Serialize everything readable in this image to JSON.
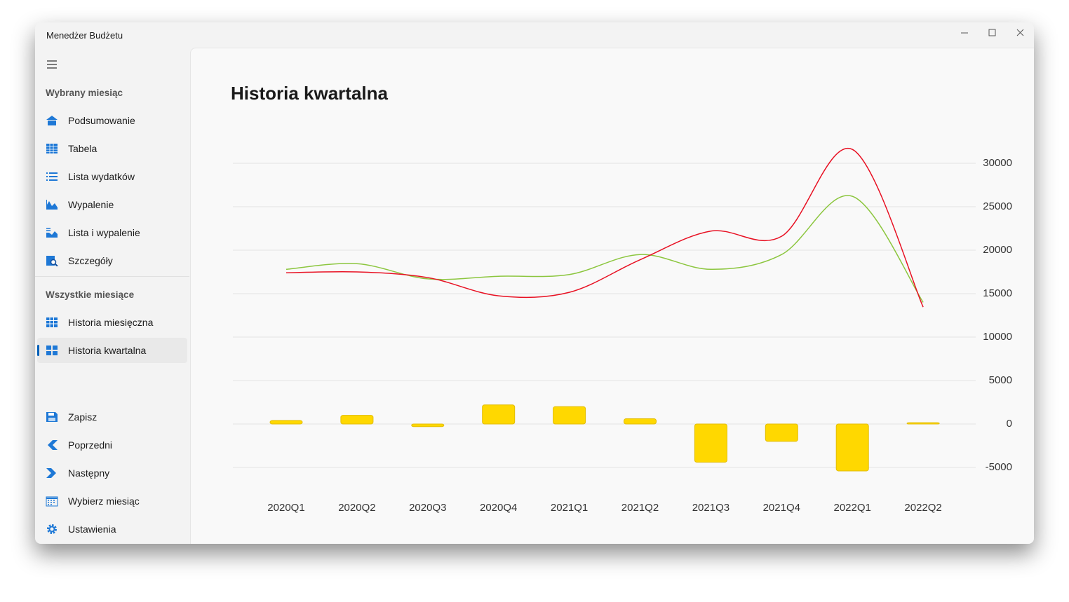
{
  "window": {
    "title": "Menedżer Budżetu"
  },
  "sidebar": {
    "sections": [
      {
        "header": "Wybrany miesiąc",
        "items": [
          "Podsumowanie",
          "Tabela",
          "Lista wydatków",
          "Wypalenie",
          "Lista i wypalenie",
          "Szczegóły"
        ]
      },
      {
        "header": "Wszystkie miesiące",
        "items": [
          "Historia miesięczna",
          "Historia kwartalna"
        ]
      }
    ],
    "footer_items": [
      "Zapisz",
      "Poprzedni",
      "Następny",
      "Wybierz miesiąc",
      "Ustawienia"
    ]
  },
  "page": {
    "title": "Historia kwartalna"
  },
  "chart_data": {
    "type": "combo",
    "categories": [
      "2020Q1",
      "2020Q2",
      "2020Q3",
      "2020Q4",
      "2021Q1",
      "2021Q2",
      "2021Q3",
      "2021Q4",
      "2022Q1",
      "2022Q2"
    ],
    "series": [
      {
        "type": "bar",
        "color": "#ffd800",
        "values": [
          400,
          1000,
          -300,
          2200,
          2000,
          600,
          -4400,
          -2000,
          -5400,
          150
        ]
      },
      {
        "type": "line",
        "color": "#8cc63f",
        "values": [
          17800,
          18450,
          16700,
          17000,
          17200,
          19500,
          17800,
          19500,
          26200,
          14000
        ]
      },
      {
        "type": "line",
        "color": "#e81123",
        "values": [
          17400,
          17500,
          16850,
          14750,
          15150,
          18900,
          22200,
          21600,
          31600,
          13450
        ]
      }
    ],
    "ylim": [
      -7500,
      32000
    ],
    "yticks": [
      -5000,
      0,
      5000,
      10000,
      15000,
      20000,
      25000,
      30000
    ],
    "grid": true,
    "y_axis_side": "right"
  }
}
